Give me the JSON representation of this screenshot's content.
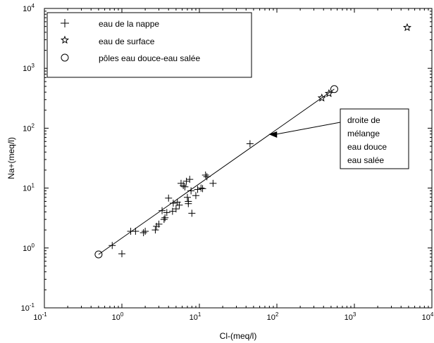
{
  "chart_data": {
    "type": "scatter",
    "xscale": "log",
    "yscale": "log",
    "xlim": [
      0.1,
      10000
    ],
    "ylim": [
      0.1,
      10000
    ],
    "xlabel": "Cl-(meq/l)",
    "ylabel": "Na+(meq/l)",
    "xticks": [
      {
        "value": 0.1,
        "base": "10",
        "exp": "-1"
      },
      {
        "value": 1,
        "base": "10",
        "exp": "0"
      },
      {
        "value": 10,
        "base": "10",
        "exp": "1"
      },
      {
        "value": 100,
        "base": "10",
        "exp": "2"
      },
      {
        "value": 1000,
        "base": "10",
        "exp": "3"
      },
      {
        "value": 10000,
        "base": "10",
        "exp": "4"
      }
    ],
    "yticks": [
      {
        "value": 0.1,
        "base": "10",
        "exp": "-1"
      },
      {
        "value": 1,
        "base": "10",
        "exp": "0"
      },
      {
        "value": 10,
        "base": "10",
        "exp": "1"
      },
      {
        "value": 100,
        "base": "10",
        "exp": "2"
      },
      {
        "value": 1000,
        "base": "10",
        "exp": "3"
      },
      {
        "value": 10000,
        "base": "10",
        "exp": "4"
      }
    ],
    "legend_position": "top-left",
    "series": [
      {
        "name": "eau de la nappe",
        "marker": "plus",
        "points": [
          [
            0.75,
            1.1
          ],
          [
            1.0,
            0.8
          ],
          [
            1.3,
            1.9
          ],
          [
            1.5,
            1.9
          ],
          [
            1.9,
            1.8
          ],
          [
            2.0,
            1.9
          ],
          [
            2.7,
            2.0
          ],
          [
            2.8,
            2.3
          ],
          [
            3.0,
            2.5
          ],
          [
            3.3,
            4.2
          ],
          [
            3.5,
            3.0
          ],
          [
            3.6,
            3.2
          ],
          [
            3.8,
            3.9
          ],
          [
            4.0,
            6.8
          ],
          [
            4.5,
            4.1
          ],
          [
            4.6,
            5.6
          ],
          [
            5.0,
            4.5
          ],
          [
            5.2,
            5.8
          ],
          [
            5.5,
            5.2
          ],
          [
            5.8,
            12.0
          ],
          [
            6.2,
            11.0
          ],
          [
            6.5,
            10.5
          ],
          [
            6.8,
            13.0
          ],
          [
            7.0,
            7.0
          ],
          [
            7.2,
            6.0
          ],
          [
            7.2,
            5.5
          ],
          [
            7.5,
            14.0
          ],
          [
            7.8,
            9.0
          ],
          [
            8.0,
            3.8
          ],
          [
            9.0,
            7.5
          ],
          [
            9.5,
            9.5
          ],
          [
            10.5,
            10.0
          ],
          [
            11.0,
            9.8
          ],
          [
            12.0,
            16.5
          ],
          [
            12.5,
            15.5
          ],
          [
            15.0,
            12.0
          ],
          [
            45.0,
            55.0
          ]
        ]
      },
      {
        "name": "eau de surface",
        "marker": "star",
        "points": [
          [
            380,
            320
          ],
          [
            470,
            380
          ],
          [
            4800,
            4800
          ]
        ]
      },
      {
        "name": "pôles eau douce-eau salée",
        "marker": "circle",
        "points": [
          [
            0.5,
            0.78
          ],
          [
            550,
            450
          ]
        ]
      }
    ],
    "lines": [
      {
        "name": "droite de mélange",
        "points": [
          [
            0.5,
            0.78
          ],
          [
            550,
            450
          ]
        ]
      }
    ],
    "annotation": {
      "lines": [
        "droite de",
        "mélange",
        "eau douce",
        "eau salée"
      ],
      "target": [
        75,
        75
      ]
    }
  }
}
